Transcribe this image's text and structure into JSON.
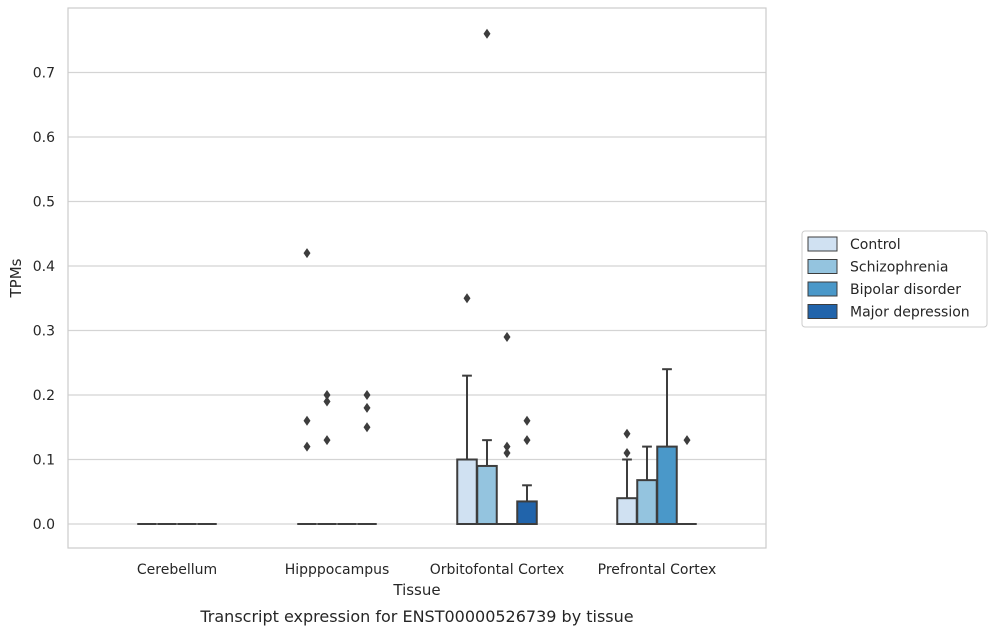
{
  "chart_data": {
    "type": "box",
    "title": "Transcript expression for ENST00000526739 by tissue",
    "xlabel": "Tissue",
    "ylabel": "TPMs",
    "ylim": [
      -0.038,
      0.8
    ],
    "yticks": [
      0.0,
      0.1,
      0.2,
      0.3,
      0.4,
      0.5,
      0.6,
      0.7
    ],
    "ytick_labels": [
      "0.0",
      "0.1",
      "0.2",
      "0.3",
      "0.4",
      "0.5",
      "0.6",
      "0.7"
    ],
    "categories": [
      "Cerebellum",
      "Hipppocampus",
      "Orbitofontal Cortex",
      "Prefrontal Cortex"
    ],
    "grid": "horizontal",
    "legend_position": "center-right, outside plot",
    "series": [
      {
        "name": "Control",
        "color": "#d0e1f2",
        "boxes": [
          {
            "q1": 0,
            "median": 0,
            "q3": 0,
            "whisker_low": 0,
            "whisker_high": 0,
            "outliers": []
          },
          {
            "q1": 0,
            "median": 0,
            "q3": 0,
            "whisker_low": 0,
            "whisker_high": 0,
            "outliers": [
              0.42,
              0.16,
              0.12
            ]
          },
          {
            "q1": 0,
            "median": 0,
            "q3": 0.1,
            "whisker_low": 0,
            "whisker_high": 0.23,
            "outliers": [
              0.35
            ]
          },
          {
            "q1": 0,
            "median": 0,
            "q3": 0.04,
            "whisker_low": 0,
            "whisker_high": 0.1,
            "outliers": [
              0.14,
              0.11
            ]
          }
        ]
      },
      {
        "name": "Schizophrenia",
        "color": "#94c4df",
        "boxes": [
          {
            "q1": 0,
            "median": 0,
            "q3": 0,
            "whisker_low": 0,
            "whisker_high": 0,
            "outliers": []
          },
          {
            "q1": 0,
            "median": 0,
            "q3": 0,
            "whisker_low": 0,
            "whisker_high": 0,
            "outliers": [
              0.2,
              0.19,
              0.13
            ]
          },
          {
            "q1": 0,
            "median": 0,
            "q3": 0.09,
            "whisker_low": 0,
            "whisker_high": 0.13,
            "outliers": [
              0.76
            ]
          },
          {
            "q1": 0,
            "median": 0,
            "q3": 0.068,
            "whisker_low": 0,
            "whisker_high": 0.12,
            "outliers": []
          }
        ]
      },
      {
        "name": "Bipolar disorder",
        "color": "#4a98c9",
        "boxes": [
          {
            "q1": 0,
            "median": 0,
            "q3": 0,
            "whisker_low": 0,
            "whisker_high": 0,
            "outliers": []
          },
          {
            "q1": 0,
            "median": 0,
            "q3": 0,
            "whisker_low": 0,
            "whisker_high": 0,
            "outliers": []
          },
          {
            "q1": 0,
            "median": 0,
            "q3": 0,
            "whisker_low": 0,
            "whisker_high": 0,
            "outliers": [
              0.29,
              0.12,
              0.11
            ]
          },
          {
            "q1": 0,
            "median": 0,
            "q3": 0.12,
            "whisker_low": 0,
            "whisker_high": 0.24,
            "outliers": []
          }
        ]
      },
      {
        "name": "Major depression",
        "color": "#2164ab",
        "boxes": [
          {
            "q1": 0,
            "median": 0,
            "q3": 0,
            "whisker_low": 0,
            "whisker_high": 0,
            "outliers": []
          },
          {
            "q1": 0,
            "median": 0,
            "q3": 0,
            "whisker_low": 0,
            "whisker_high": 0,
            "outliers": [
              0.2,
              0.18,
              0.15
            ]
          },
          {
            "q1": 0,
            "median": 0,
            "q3": 0.035,
            "whisker_low": 0,
            "whisker_high": 0.06,
            "outliers": [
              0.16,
              0.13
            ]
          },
          {
            "q1": 0,
            "median": 0,
            "q3": 0,
            "whisker_low": 0,
            "whisker_high": 0,
            "outliers": [
              0.13
            ]
          }
        ]
      }
    ]
  }
}
